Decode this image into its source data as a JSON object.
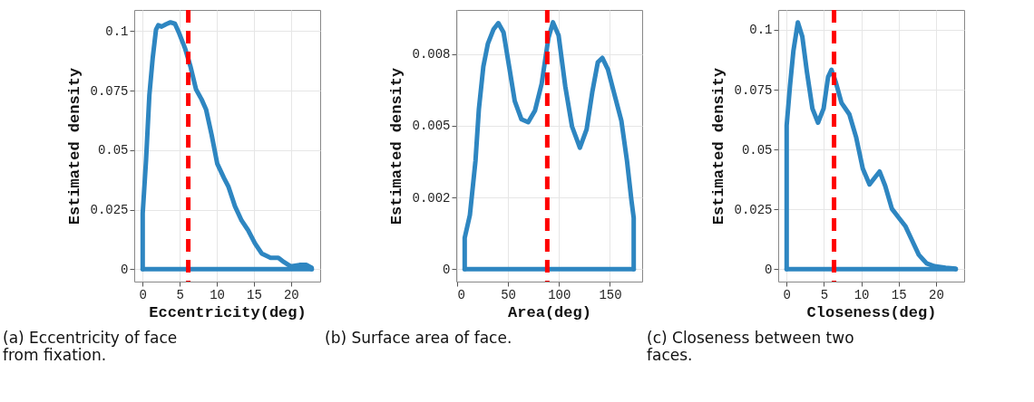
{
  "chart_data": [
    {
      "type": "line",
      "xlabel": "Eccentricity(deg)",
      "ylabel": "Estimated density",
      "annotations": [
        "(a) Eccentricity of face from fixation."
      ],
      "xlim": [
        -1.14,
        23.94
      ],
      "ylim": [
        -0.0052,
        0.1089
      ],
      "xticks": [
        0,
        5,
        10,
        15,
        20
      ],
      "yticks": [
        0,
        0.025,
        0.05,
        0.075,
        0.1
      ],
      "grid": true,
      "series": [
        {
          "color": "#2e86c1",
          "x": [
            0,
            0,
            0.45,
            0.9,
            1.35,
            1.8,
            2.1,
            2.55,
            3.15,
            3.75,
            4.35,
            4.95,
            5.7,
            6.45,
            7.2,
            7.95,
            8.55,
            9.3,
            10.05,
            10.95,
            11.55,
            12.45,
            13.35,
            14.25,
            15.15,
            16.05,
            17.25,
            18.3,
            19.05,
            19.95,
            21.15,
            22.05,
            22.8,
            22.8
          ],
          "values": [
            0,
            0.0234,
            0.0456,
            0.0731,
            0.0887,
            0.1007,
            0.1025,
            0.1019,
            0.1029,
            0.1037,
            0.1031,
            0.0989,
            0.0929,
            0.0851,
            0.0755,
            0.0713,
            0.0671,
            0.0564,
            0.0444,
            0.0384,
            0.0348,
            0.0264,
            0.0204,
            0.0162,
            0.0108,
            0.0066,
            0.0048,
            0.0048,
            0.003,
            0.0012,
            0.0018,
            0.0018,
            0.0006,
            0
          ]
        },
        {
          "color": "#2e86c1",
          "x": [
            0,
            22.8
          ],
          "values": [
            0,
            0
          ]
        }
      ],
      "ref_lines": [
        {
          "axis": "x",
          "value": 6.15,
          "color": "#ff0000",
          "line_style": "dashed"
        }
      ]
    },
    {
      "type": "line",
      "xlabel": "Area(deg)",
      "ylabel": "Estimated density",
      "annotations": [
        "(b) Surface area of face."
      ],
      "xlim": [
        -0.8,
        181.6
      ],
      "ylim": [
        -0.00043,
        0.00903
      ],
      "xticks": [
        0,
        50,
        100,
        150
      ],
      "yticks": [
        0,
        {
          "value": 0.0025,
          "label": "0.002"
        },
        0.005,
        {
          "value": 0.0075,
          "label": "0.008"
        }
      ],
      "grid": true,
      "series": [
        {
          "color": "#2e86c1",
          "x": [
            7.5,
            7.5,
            12.6,
            18.1,
            21.4,
            25.8,
            30.2,
            35.7,
            40.5,
            45.6,
            51.1,
            56.6,
            63.2,
            69.8,
            76.4,
            83,
            89.6,
            94.1,
            99.6,
            106.2,
            112.8,
            120.5,
            127.1,
            132.6,
            138.1,
            142.5,
            148,
            154.6,
            161.2,
            166.7,
            171.1,
            173.3,
            173.3
          ],
          "values": [
            0,
            0.00109,
            0.00189,
            0.00378,
            0.00557,
            0.00706,
            0.00785,
            0.00835,
            0.00857,
            0.00825,
            0.00706,
            0.00586,
            0.00522,
            0.00512,
            0.00552,
            0.00646,
            0.00805,
            0.0086,
            0.00815,
            0.00636,
            0.00497,
            0.00423,
            0.00487,
            0.00616,
            0.00721,
            0.00736,
            0.00696,
            0.00606,
            0.00517,
            0.00378,
            0.00239,
            0.00179,
            0
          ]
        },
        {
          "color": "#2e86c1",
          "x": [
            7.5,
            173.3
          ],
          "values": [
            0,
            0
          ]
        }
      ],
      "ref_lines": [
        {
          "axis": "x",
          "value": 88.5,
          "color": "#ff0000",
          "line_style": "dashed"
        }
      ]
    },
    {
      "type": "line",
      "xlabel": "Closeness(deg)",
      "ylabel": "Estimated density",
      "annotations": [
        "(c) Closeness between two faces."
      ],
      "xlim": [
        -1.13,
        23.78
      ],
      "ylim": [
        -0.0052,
        0.1083
      ],
      "xticks": [
        0,
        5,
        10,
        15,
        20
      ],
      "yticks": [
        0,
        0.025,
        0.05,
        0.075,
        0.1
      ],
      "grid": true,
      "series": [
        {
          "color": "#2e86c1",
          "x": [
            0,
            0,
            0.45,
            0.9,
            1.5,
            2.1,
            2.7,
            3.45,
            4.2,
            4.95,
            5.55,
            6,
            6.6,
            7.35,
            8.4,
            9.3,
            10.2,
            11.1,
            11.85,
            12.45,
            13.2,
            14.1,
            15,
            15.9,
            16.8,
            17.7,
            18.75,
            19.8,
            21.3,
            22.65,
            22.65
          ],
          "values": [
            0,
            0.06,
            0.0767,
            0.0911,
            0.1031,
            0.0971,
            0.0827,
            0.0671,
            0.0612,
            0.0671,
            0.0803,
            0.0833,
            0.0779,
            0.0695,
            0.0647,
            0.0552,
            0.042,
            0.0354,
            0.0384,
            0.0408,
            0.0348,
            0.0252,
            0.0216,
            0.018,
            0.012,
            0.006,
            0.0024,
            0.0012,
            0.0006,
            0.0002,
            0
          ]
        },
        {
          "color": "#2e86c1",
          "x": [
            0,
            22.65
          ],
          "values": [
            0,
            0
          ]
        }
      ],
      "ref_lines": [
        {
          "axis": "x",
          "value": 6.35,
          "color": "#ff0000",
          "line_style": "dashed"
        }
      ]
    }
  ]
}
